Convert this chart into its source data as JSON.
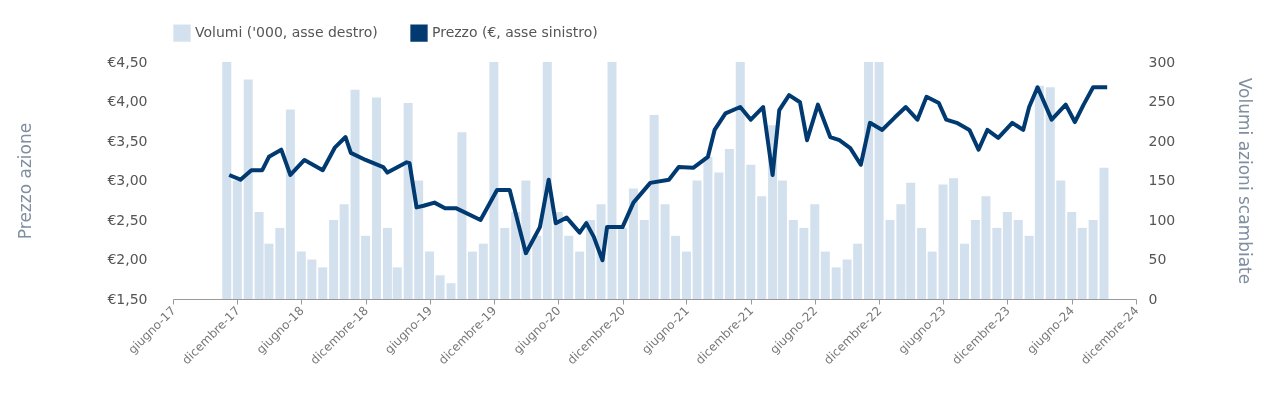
{
  "chart_data": {
    "type": "line",
    "ylabel": "Prezzo azione",
    "y2label": "Volumi azioni scambiate",
    "legend": "top",
    "xlim": [
      "2017-06",
      "2024-12"
    ],
    "xticks": [
      {
        "value": "2017-06",
        "label": "giugno-17"
      },
      {
        "value": "2017-12",
        "label": "dicembre-17"
      },
      {
        "value": "2018-06",
        "label": "giugno-18"
      },
      {
        "value": "2018-12",
        "label": "dicembre-18"
      },
      {
        "value": "2019-06",
        "label": "giugno-19"
      },
      {
        "value": "2019-12",
        "label": "dicembre-19"
      },
      {
        "value": "2020-06",
        "label": "giugno-20"
      },
      {
        "value": "2020-12",
        "label": "dicembre-20"
      },
      {
        "value": "2021-06",
        "label": "giugno-21"
      },
      {
        "value": "2021-12",
        "label": "dicembre-21"
      },
      {
        "value": "2022-06",
        "label": "giugno-22"
      },
      {
        "value": "2022-12",
        "label": "dicembre-22"
      },
      {
        "value": "2023-06",
        "label": "giugno-23"
      },
      {
        "value": "2023-12",
        "label": "dicembre-23"
      },
      {
        "value": "2024-06",
        "label": "giugno-24"
      },
      {
        "value": "2024-12",
        "label": "dicembre-24"
      }
    ],
    "ylim": [
      1.5,
      4.5
    ],
    "yticks": [
      {
        "value": 1.5,
        "label": "€1,50"
      },
      {
        "value": 2,
        "label": "€2,00"
      },
      {
        "value": 2.5,
        "label": "€2,50"
      },
      {
        "value": 3,
        "label": "€3,00"
      },
      {
        "value": 3.5,
        "label": "€3,50"
      },
      {
        "value": 4,
        "label": "€4,00"
      },
      {
        "value": 4.5,
        "label": "€4,50"
      }
    ],
    "y2lim": [
      0,
      300
    ],
    "y2ticks": [
      0,
      50,
      100,
      150,
      200,
      250,
      300
    ],
    "series": [
      {
        "name": "Volumi ('000, asse destro)",
        "type": "bar",
        "axis": "y2",
        "color": "#d3e1ee",
        "x": [
          "2017-11",
          "2017-12",
          "2018-01",
          "2018-02",
          "2018-03",
          "2018-04",
          "2018-05",
          "2018-06",
          "2018-07",
          "2018-08",
          "2018-09",
          "2018-10",
          "2018-11",
          "2018-12",
          "2019-01",
          "2019-02",
          "2019-03",
          "2019-04",
          "2019-05",
          "2019-06",
          "2019-07",
          "2019-08",
          "2019-09",
          "2019-10",
          "2019-11",
          "2019-12",
          "2020-01",
          "2020-02",
          "2020-03",
          "2020-04",
          "2020-05",
          "2020-06",
          "2020-07",
          "2020-08",
          "2020-09",
          "2020-10",
          "2020-11",
          "2020-12",
          "2021-01",
          "2021-02",
          "2021-03",
          "2021-04",
          "2021-05",
          "2021-06",
          "2021-07",
          "2021-08",
          "2021-09",
          "2021-10",
          "2021-11",
          "2021-12",
          "2022-01",
          "2022-02",
          "2022-03",
          "2022-04",
          "2022-05",
          "2022-06",
          "2022-07",
          "2022-08",
          "2022-09",
          "2022-10",
          "2022-11",
          "2022-12",
          "2023-01",
          "2023-02",
          "2023-03",
          "2023-04",
          "2023-05",
          "2023-06",
          "2023-07",
          "2023-08",
          "2023-09",
          "2023-10",
          "2023-11",
          "2023-12",
          "2024-01",
          "2024-02",
          "2024-03",
          "2024-04",
          "2024-05",
          "2024-06",
          "2024-07",
          "2024-08",
          "2024-09"
        ],
        "values": [
          300,
          150,
          278,
          110,
          70,
          90,
          240,
          60,
          50,
          40,
          100,
          120,
          265,
          80,
          255,
          90,
          40,
          248,
          150,
          60,
          30,
          20,
          211,
          60,
          70,
          300,
          90,
          110,
          150,
          80,
          300,
          110,
          80,
          60,
          100,
          120,
          300,
          90,
          140,
          100,
          233,
          120,
          80,
          60,
          150,
          180,
          160,
          190,
          300,
          170,
          130,
          220,
          150,
          100,
          90,
          120,
          60,
          40,
          50,
          70,
          300,
          300,
          100,
          120,
          147,
          90,
          60,
          145,
          153,
          70,
          100,
          130,
          90,
          110,
          100,
          80,
          270,
          268,
          150,
          110,
          90,
          100,
          166
        ]
      },
      {
        "name": "Prezzo (€, asse sinistro)",
        "color": "#003a70",
        "x": [
          "2017-11-08",
          "2017-12-10",
          "2018-01-10",
          "2018-02-10",
          "2018-03-01",
          "2018-04-05",
          "2018-05-01",
          "2018-06-10",
          "2018-08-01",
          "2018-09-05",
          "2018-10-05",
          "2018-10-20",
          "2018-12-01",
          "2019-01-20",
          "2019-02-01",
          "2019-03-28",
          "2019-04-05",
          "2019-04-25",
          "2019-05-15",
          "2019-06-15",
          "2019-07-15",
          "2019-08-15",
          "2019-10-24",
          "2019-12-10",
          "2020-01-15",
          "2020-03-01",
          "2020-04-10",
          "2020-05-05",
          "2020-05-25",
          "2020-06-25",
          "2020-08-01",
          "2020-08-20",
          "2020-09-10",
          "2020-10-05",
          "2020-10-18",
          "2020-12-01",
          "2021-01-01",
          "2021-02-18",
          "2021-04-12",
          "2021-05-10",
          "2021-06-20",
          "2021-08-01",
          "2021-08-20",
          "2021-09-20",
          "2021-11-01",
          "2021-12-01",
          "2022-01-05",
          "2022-02-01",
          "2022-02-20",
          "2022-03-20",
          "2022-04-20",
          "2022-05-10",
          "2022-06-10",
          "2022-07-15",
          "2022-08-10",
          "2022-09-10",
          "2022-10-10",
          "2022-11-05",
          "2022-12-10",
          "2023-01-15",
          "2023-02-15",
          "2023-03-20",
          "2023-04-15",
          "2023-05-20",
          "2023-06-10",
          "2023-07-10",
          "2023-08-15",
          "2023-09-10",
          "2023-10-05",
          "2023-11-05",
          "2023-12-15",
          "2024-01-15",
          "2024-02-01",
          "2024-02-25",
          "2024-04-05",
          "2024-05-15",
          "2024-06-10",
          "2024-07-05",
          "2024-08-01",
          "2024-09-10"
        ],
        "values": [
          3.07,
          3.01,
          3.13,
          3.13,
          3.3,
          3.39,
          3.07,
          3.26,
          3.13,
          3.42,
          3.55,
          3.35,
          3.26,
          3.17,
          3.1,
          3.23,
          3.22,
          2.66,
          2.68,
          2.72,
          2.65,
          2.65,
          2.5,
          2.88,
          2.88,
          2.08,
          2.41,
          3.01,
          2.46,
          2.53,
          2.34,
          2.46,
          2.29,
          1.99,
          2.41,
          2.41,
          2.72,
          2.97,
          3.01,
          3.17,
          3.16,
          3.3,
          3.64,
          3.85,
          3.93,
          3.77,
          3.93,
          3.07,
          3.89,
          4.08,
          3.99,
          3.51,
          3.96,
          3.55,
          3.51,
          3.41,
          3.2,
          3.73,
          3.64,
          3.8,
          3.93,
          3.77,
          4.06,
          3.98,
          3.77,
          3.73,
          3.64,
          3.39,
          3.64,
          3.54,
          3.73,
          3.64,
          3.93,
          4.18,
          3.77,
          3.96,
          3.74,
          3.96,
          4.18,
          4.18
        ]
      }
    ]
  }
}
